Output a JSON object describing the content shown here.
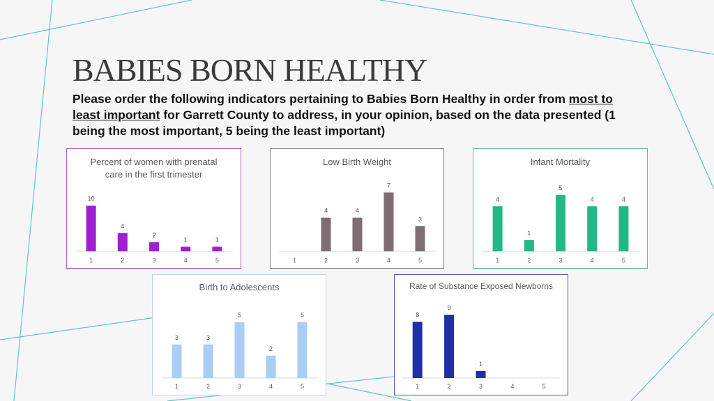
{
  "slide": {
    "title": "BABIES BORN HEALTHY",
    "instructions": {
      "part1": "Please order the following indicators pertaining to Babies Born Healthy in order from ",
      "underline1": "most to least important",
      "part2": " for Garrett County to address, in your opinion, based on the data presented (1 being the most important, 5 being the least important)"
    }
  },
  "chart_data": [
    {
      "type": "bar",
      "title": "Percent of women with prenatal care in the first trimester",
      "categories": [
        "1",
        "2",
        "3",
        "4",
        "5"
      ],
      "values": [
        10,
        4,
        2,
        1,
        1
      ],
      "ylim": [
        0,
        11
      ],
      "color": "#a020d0",
      "border_color": "#b05fcf",
      "grid": false
    },
    {
      "type": "bar",
      "title": "Low Birth Weight",
      "categories": [
        "1",
        "2",
        "3",
        "4",
        "5"
      ],
      "values": [
        null,
        4,
        4,
        7,
        3
      ],
      "ylim": [
        0,
        7.7
      ],
      "color": "#7e6e71",
      "border_color": "#8c8385",
      "grid": false
    },
    {
      "type": "bar",
      "title": "Infant Mortality",
      "categories": [
        "1",
        "2",
        "3",
        "4",
        "5"
      ],
      "values": [
        4,
        1,
        5,
        4,
        4
      ],
      "ylim": [
        0,
        5.5
      ],
      "color": "#23b887",
      "border_color": "#5fbf9b",
      "grid": false
    },
    {
      "type": "bar",
      "title": "Birth to Adolescents",
      "categories": [
        "1",
        "2",
        "3",
        "4",
        "5"
      ],
      "values": [
        3,
        3,
        5,
        2,
        5
      ],
      "ylim": [
        0,
        5.6
      ],
      "color": "#a9cdf4",
      "border_color": "#b7d4ec",
      "grid": false
    },
    {
      "type": "bar",
      "title": "Rate of Substance Exposed Newborns",
      "categories": [
        "1",
        "2",
        "3",
        "4",
        "5"
      ],
      "values": [
        8,
        9,
        1,
        null,
        null
      ],
      "ylim": [
        0,
        10
      ],
      "color": "#1f2fa8",
      "border_color": "#4650b8",
      "grid": false
    }
  ]
}
